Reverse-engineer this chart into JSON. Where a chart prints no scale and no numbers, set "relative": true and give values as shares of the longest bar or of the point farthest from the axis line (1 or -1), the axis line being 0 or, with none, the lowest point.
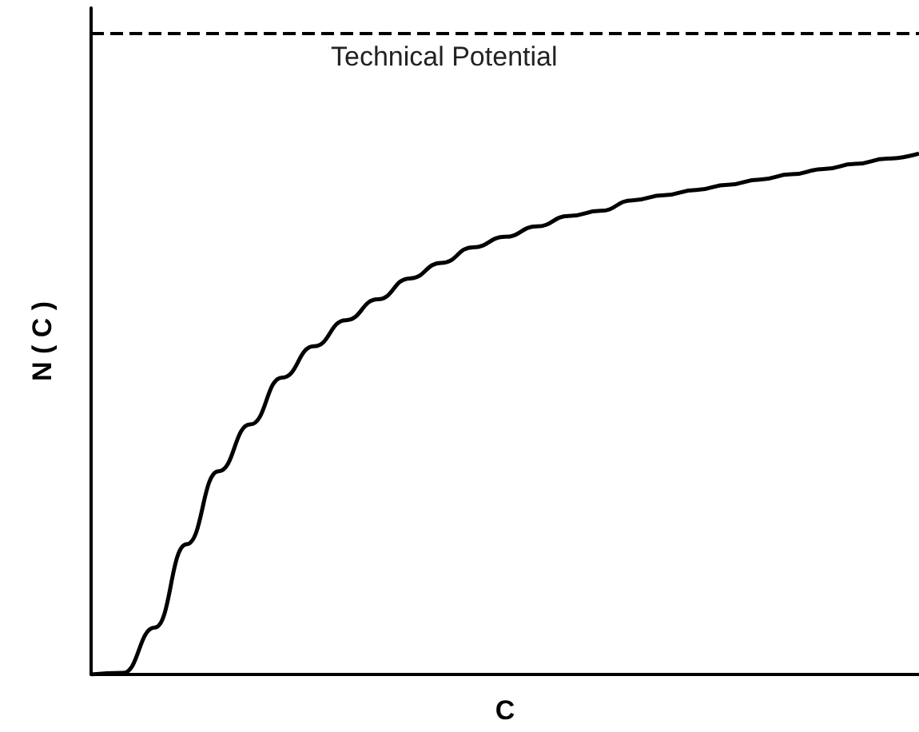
{
  "chart_data": {
    "type": "line",
    "relative": true,
    "xlabel": "C",
    "ylabel": "N ( C )",
    "tick_labels": false,
    "marker": "none",
    "line_style": "solid",
    "categories": [
      null,
      null,
      null,
      null,
      null,
      null,
      null,
      null,
      null,
      null,
      null,
      null,
      null,
      null,
      null,
      null,
      null,
      null,
      null,
      null,
      null,
      null,
      null,
      null,
      null,
      null,
      null
    ],
    "series": [
      {
        "color": "#000000",
        "values": [
          0,
          0.003,
          0.09,
          0.25,
          0.39,
          0.48,
          0.57,
          0.63,
          0.68,
          0.72,
          0.76,
          0.79,
          0.82,
          0.84,
          0.86,
          0.88,
          0.89,
          0.91,
          0.92,
          0.93,
          0.94,
          0.95,
          0.96,
          0.97,
          0.98,
          0.99,
          1
        ]
      }
    ],
    "ref_lines": [
      {
        "axis": "y",
        "value": 1.23,
        "label": "Technical Potential",
        "color": "#000000",
        "line_style": "dashed"
      }
    ]
  }
}
